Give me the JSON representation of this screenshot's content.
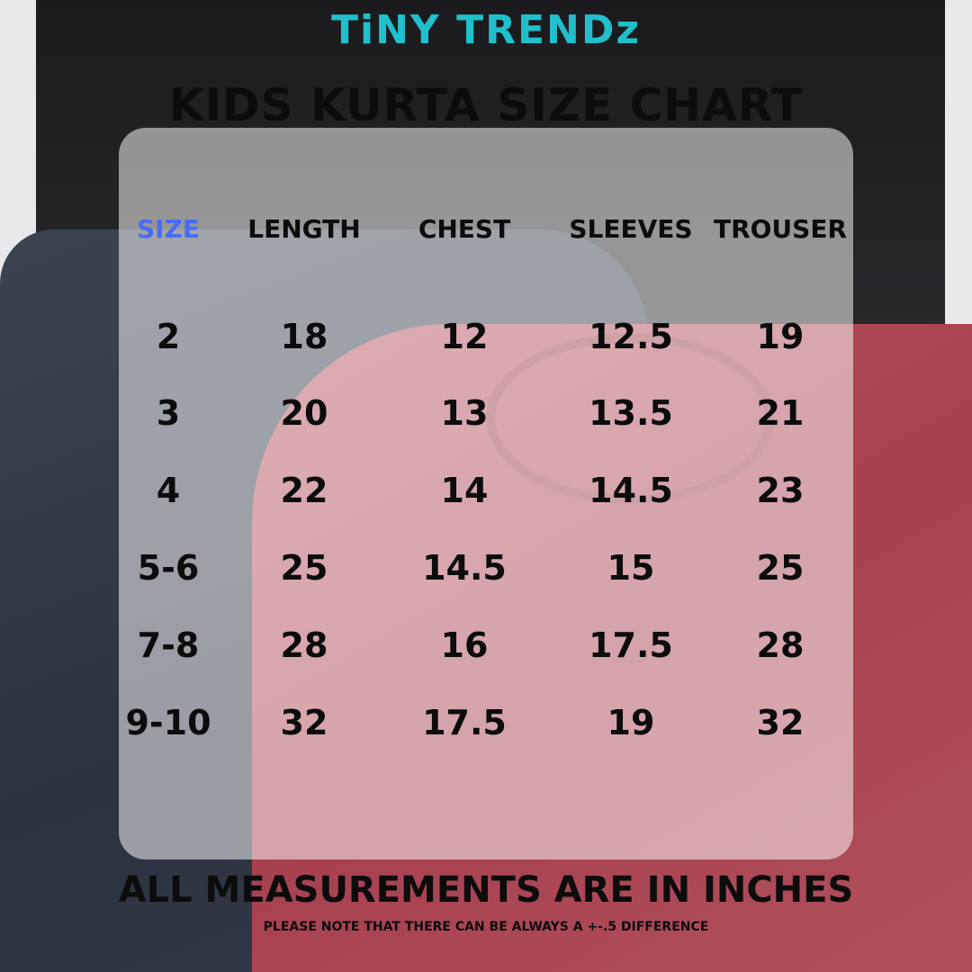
{
  "brand": {
    "logo_text": "TiNY TRENDz",
    "logo_color": "#1fc0cc",
    "accent_heart_color": "#f0579a"
  },
  "title": "KIDS KURTA SIZE CHART",
  "table": {
    "headers": [
      "SIZE",
      "LENGTH",
      "CHEST",
      "SLEEVES",
      "TROUSER"
    ],
    "size_header_color": "#4a6cf7",
    "rows": [
      [
        "2",
        "18",
        "12",
        "12.5",
        "19"
      ],
      [
        "3",
        "20",
        "13",
        "13.5",
        "21"
      ],
      [
        "4",
        "22",
        "14",
        "14.5",
        "23"
      ],
      [
        "5-6",
        "25",
        "14.5",
        "15",
        "25"
      ],
      [
        "7-8",
        "28",
        "16",
        "17.5",
        "28"
      ],
      [
        "9-10",
        "32",
        "17.5",
        "19",
        "32"
      ]
    ]
  },
  "footer": {
    "note": "ALL MEASUREMENTS ARE IN INCHES",
    "disclaimer": "PLEASE NOTE THAT THERE CAN BE ALWAYS A +-.5 DIFFERENCE"
  }
}
